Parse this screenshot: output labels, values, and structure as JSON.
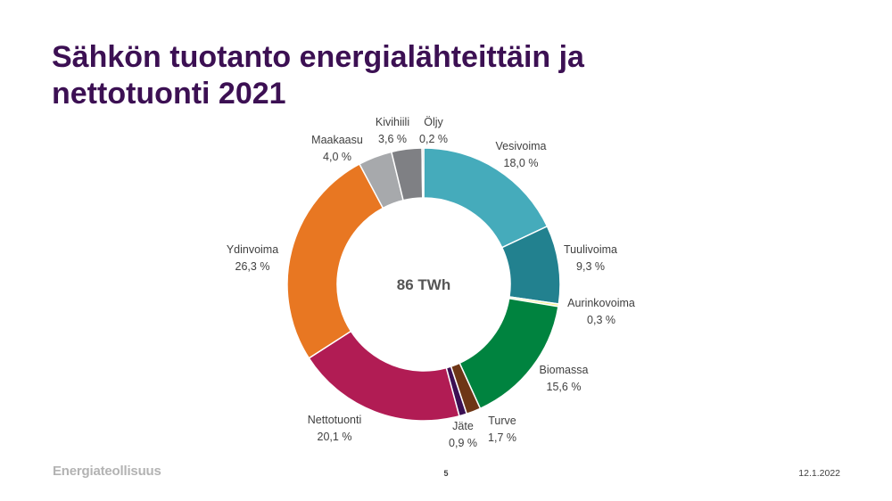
{
  "slide": {
    "title_line1": "Sähkön tuotanto energialähteittäin ja",
    "title_line2": "nettotuonti 2021",
    "logo": "Energiateollisuus",
    "page_number": "5",
    "date": "12.1.2022"
  },
  "chart_data": {
    "type": "pie",
    "donut": true,
    "center_label": "86 TWh",
    "legend": "none",
    "slices": [
      {
        "name": "Vesivoima",
        "value": 18.0,
        "label": "18,0 %",
        "color": "#45abbb"
      },
      {
        "name": "Tuulivoima",
        "value": 9.3,
        "label": "9,3 %",
        "color": "#22818f"
      },
      {
        "name": "Aurinkovoima",
        "value": 0.3,
        "label": "0,3 %",
        "color": "#f2ef8c"
      },
      {
        "name": "Biomassa",
        "value": 15.6,
        "label": "15,6 %",
        "color": "#00833f"
      },
      {
        "name": "Turve",
        "value": 1.7,
        "label": "1,7 %",
        "color": "#6e3616"
      },
      {
        "name": "Jäte",
        "value": 0.9,
        "label": "0,9 %",
        "color": "#3c1053"
      },
      {
        "name": "Nettotuonti",
        "value": 20.1,
        "label": "20,1 %",
        "color": "#b11c54"
      },
      {
        "name": "Ydinvoima",
        "value": 26.3,
        "label": "26,3 %",
        "color": "#e87722"
      },
      {
        "name": "Maakaasu",
        "value": 4.0,
        "label": "4,0 %",
        "color": "#a7a9ac"
      },
      {
        "name": "Kivihiili",
        "value": 3.6,
        "label": "3,6 %",
        "color": "#7f8084"
      },
      {
        "name": "Öljy",
        "value": 0.2,
        "label": "0,2 %",
        "color": "#c5c5c5"
      }
    ]
  }
}
